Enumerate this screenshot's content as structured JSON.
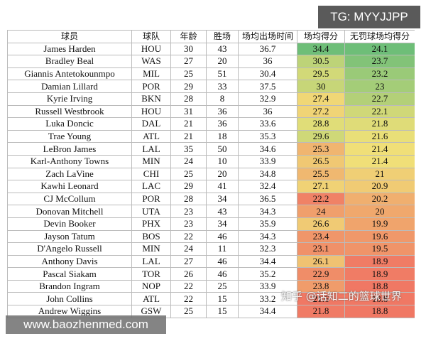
{
  "table": {
    "header": [
      "球员",
      "球队",
      "年龄",
      "胜场",
      "场均出场时间",
      "场均得分",
      "无罚球场均得分"
    ],
    "rows": [
      [
        "James Harden",
        "HOU",
        30,
        43,
        36.7,
        34.4,
        24.1
      ],
      [
        "Bradley Beal",
        "WAS",
        27,
        20,
        36,
        30.5,
        23.7
      ],
      [
        "Giannis Antetokounmpo",
        "MIL",
        25,
        51,
        30.4,
        29.5,
        23.2
      ],
      [
        "Damian Lillard",
        "POR",
        29,
        33,
        37.5,
        30,
        23
      ],
      [
        "Kyrie Irving",
        "BKN",
        28,
        8,
        32.9,
        27.4,
        22.7
      ],
      [
        "Russell Westbrook",
        "HOU",
        31,
        36,
        36,
        27.2,
        22.1
      ],
      [
        "Luka Doncic",
        "DAL",
        21,
        36,
        33.6,
        28.8,
        21.8
      ],
      [
        "Trae Young",
        "ATL",
        21,
        18,
        35.3,
        29.6,
        21.6
      ],
      [
        "LeBron James",
        "LAL",
        35,
        50,
        34.6,
        25.3,
        21.4
      ],
      [
        "Karl-Anthony Towns",
        "MIN",
        24,
        10,
        33.9,
        26.5,
        21.4
      ],
      [
        "Zach LaVine",
        "CHI",
        25,
        20,
        34.8,
        25.5,
        21
      ],
      [
        "Kawhi Leonard",
        "LAC",
        29,
        41,
        32.4,
        27.1,
        20.9
      ],
      [
        "CJ McCollum",
        "POR",
        28,
        34,
        36.5,
        22.2,
        20.2
      ],
      [
        "Donovan Mitchell",
        "UTA",
        23,
        43,
        34.3,
        24,
        20
      ],
      [
        "Devin Booker",
        "PHX",
        23,
        34,
        35.9,
        26.6,
        19.9
      ],
      [
        "Jayson Tatum",
        "BOS",
        22,
        46,
        34.3,
        23.4,
        19.6
      ],
      [
        "D'Angelo Russell",
        "MIN",
        24,
        11,
        32.3,
        23.1,
        19.5
      ],
      [
        "Anthony Davis",
        "LAL",
        27,
        46,
        34.4,
        26.1,
        18.9
      ],
      [
        "Pascal Siakam",
        "TOR",
        26,
        46,
        35.2,
        22.9,
        18.9
      ],
      [
        "Brandon Ingram",
        "NOP",
        22,
        25,
        33.9,
        23.8,
        18.8
      ],
      [
        "John Collins",
        "ATL",
        22,
        15,
        33.2,
        21.6,
        18.8
      ],
      [
        "Andrew Wiggins",
        "GSW",
        25,
        15,
        34.4,
        21.8,
        18.8
      ]
    ]
  },
  "watermarks": {
    "top": "TG: MYYJJPP",
    "bottom": "www.baozhenmed.com",
    "middle": "知乎 @话知二的篮球世界"
  }
}
